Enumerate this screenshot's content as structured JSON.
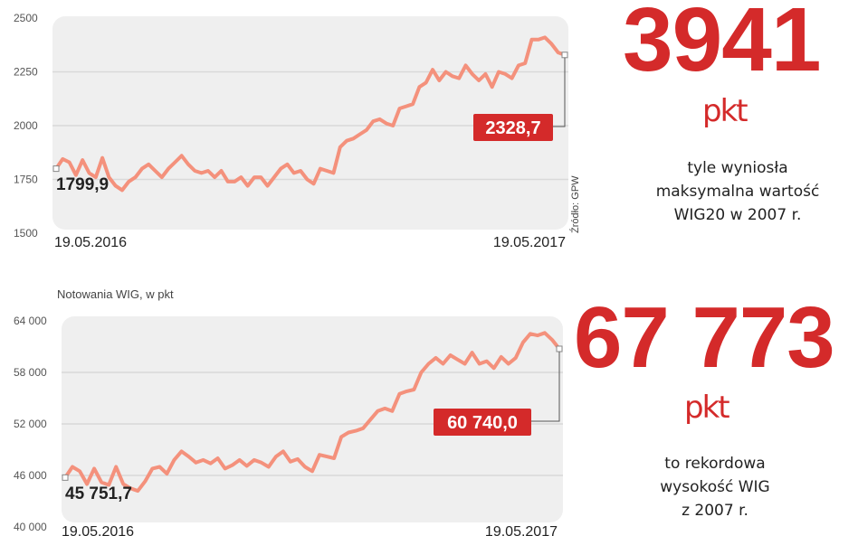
{
  "colors": {
    "line": "#f4917c",
    "accent": "#d42a2a",
    "plot_bg": "#efefef",
    "grid": "#d9d9d9"
  },
  "chart_data": [
    {
      "type": "line",
      "title": "",
      "source": "Źródło: GPW",
      "ylim": [
        1500,
        2500
      ],
      "yticks": [
        "2500",
        "2250",
        "2000",
        "1750",
        "1500"
      ],
      "ytick_values": [
        2500,
        2250,
        2000,
        1750,
        1500
      ],
      "grid": true,
      "x_labels": [
        "19.05.2016",
        "19.05.2017"
      ],
      "start_label": "1799,9",
      "end_label": "2328,7",
      "values": [
        1800,
        1845,
        1830,
        1770,
        1840,
        1780,
        1760,
        1850,
        1760,
        1720,
        1700,
        1740,
        1760,
        1800,
        1820,
        1790,
        1760,
        1800,
        1830,
        1860,
        1820,
        1790,
        1780,
        1790,
        1760,
        1790,
        1740,
        1740,
        1760,
        1720,
        1760,
        1760,
        1720,
        1760,
        1800,
        1820,
        1780,
        1790,
        1750,
        1730,
        1800,
        1790,
        1780,
        1900,
        1930,
        1940,
        1960,
        1980,
        2020,
        2030,
        2010,
        2000,
        2080,
        2090,
        2100,
        2180,
        2200,
        2260,
        2210,
        2250,
        2230,
        2220,
        2280,
        2240,
        2210,
        2240,
        2180,
        2250,
        2240,
        2220,
        2280,
        2290,
        2400,
        2400,
        2410,
        2380,
        2340,
        2328.7
      ]
    },
    {
      "type": "line",
      "title": "Notowania WIG, w pkt",
      "ylim": [
        40000,
        64000
      ],
      "yticks": [
        "64 000",
        "58 000",
        "52 000",
        "46 000",
        "40 000"
      ],
      "ytick_values": [
        64000,
        58000,
        52000,
        46000,
        40000
      ],
      "grid": true,
      "x_labels": [
        "19.05.2016",
        "19.05.2017"
      ],
      "start_label": "45 751,7",
      "end_label": "60 740,0",
      "values": [
        45752,
        47000,
        46500,
        45000,
        46800,
        45200,
        44900,
        47000,
        45000,
        44500,
        44200,
        45300,
        46800,
        47000,
        46200,
        47800,
        48800,
        48200,
        47500,
        47800,
        47400,
        48000,
        46800,
        47200,
        47800,
        47100,
        47800,
        47500,
        47000,
        48200,
        48800,
        47600,
        47900,
        47000,
        46500,
        48400,
        48200,
        48000,
        50500,
        51000,
        51200,
        51500,
        52500,
        53500,
        53800,
        53500,
        55500,
        55800,
        56000,
        58000,
        59000,
        59700,
        59000,
        60000,
        59500,
        59000,
        60300,
        59000,
        59300,
        58500,
        59800,
        59000,
        59700,
        61500,
        62500,
        62300,
        62600,
        61800,
        60740
      ]
    }
  ],
  "facts": [
    {
      "number": "3941",
      "unit": "pkt",
      "lines": [
        "tyle wyniosła",
        "maksymalna wartość",
        "WIG20 w 2007 r."
      ]
    },
    {
      "number": "67 773",
      "unit": "pkt",
      "lines": [
        "to rekordowa",
        "wysokość WIG",
        "z 2007 r."
      ]
    }
  ]
}
